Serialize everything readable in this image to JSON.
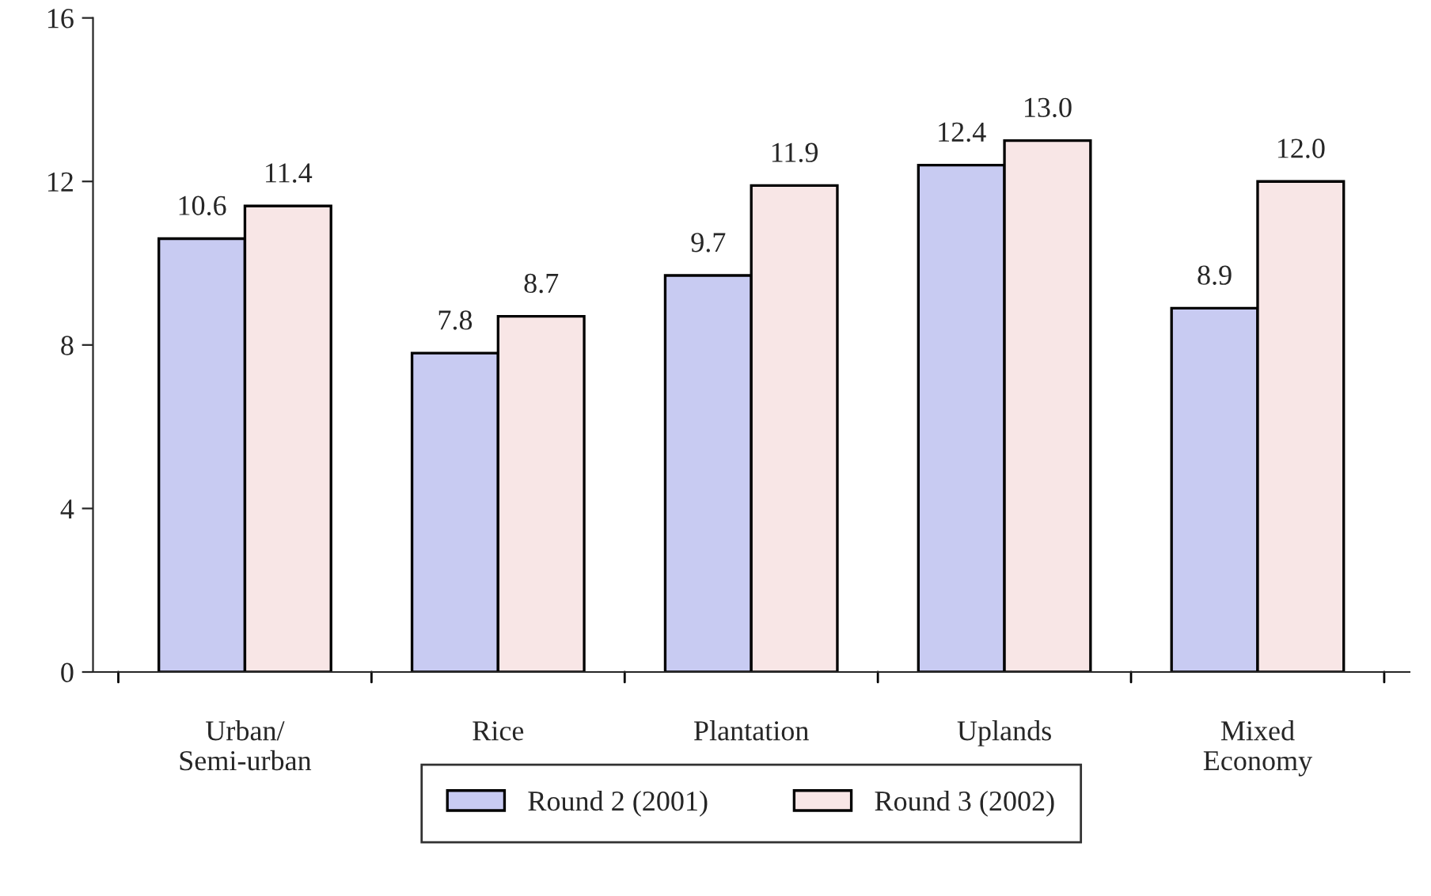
{
  "chart_data": {
    "type": "bar",
    "categories": [
      "Urban/\nSemi-urban",
      "Rice",
      "Plantation",
      "Uplands",
      "Mixed\nEconomy"
    ],
    "series": [
      {
        "name": "Round 2 (2001)",
        "color": "#c8cbf2",
        "values": [
          10.6,
          7.8,
          9.7,
          12.4,
          8.9
        ],
        "value_labels": [
          "10.6",
          "7.8",
          "9.7",
          "12.4",
          "8.9"
        ]
      },
      {
        "name": "Round 3 (2002)",
        "color": "#f8e6e6",
        "values": [
          11.4,
          8.7,
          11.9,
          13.0,
          12.0
        ],
        "value_labels": [
          "11.4",
          "8.7",
          "11.9",
          "13.0",
          "12.0"
        ]
      }
    ],
    "ylim": [
      0,
      16
    ],
    "yticks": [
      0,
      4,
      8,
      12,
      16
    ],
    "grid": false,
    "legend": "bottom"
  }
}
